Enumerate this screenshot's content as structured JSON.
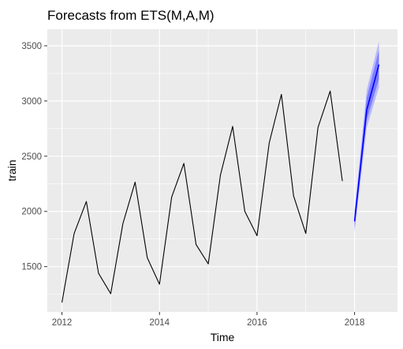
{
  "chart_data": {
    "type": "line",
    "title": "Forecasts from ETS(M,A,M)",
    "xlabel": "Time",
    "ylabel": "train",
    "xlim": [
      2011.7,
      2018.88
    ],
    "ylim": [
      1090,
      3650
    ],
    "x_ticks": [
      2012,
      2014,
      2016,
      2018
    ],
    "y_ticks": [
      1500,
      2000,
      2500,
      3000,
      3500
    ],
    "x_tick_labels": [
      "2012",
      "2014",
      "2016",
      "2018"
    ],
    "y_tick_labels": [
      "1500",
      "2000",
      "2500",
      "3000",
      "3500"
    ],
    "grid": true,
    "series": [
      {
        "role": "observed",
        "x": [
          2012.0,
          2012.25,
          2012.5,
          2012.75,
          2013.0,
          2013.25,
          2013.5,
          2013.75,
          2014.0,
          2014.25,
          2014.5,
          2014.75,
          2015.0,
          2015.25,
          2015.5,
          2015.75,
          2016.0,
          2016.25,
          2016.5,
          2016.75,
          2017.0,
          2017.25,
          2017.5,
          2017.75
        ],
        "values": [
          1175,
          1800,
          2090,
          1440,
          1255,
          1890,
          2265,
          1580,
          1340,
          2130,
          2435,
          1700,
          1525,
          2330,
          2770,
          2000,
          1780,
          2620,
          3060,
          2140,
          1800,
          2760,
          3090,
          2275
        ]
      },
      {
        "role": "forecast",
        "x": [
          2018.0,
          2018.25,
          2018.5
        ],
        "values": [
          1910,
          2920,
          3330
        ]
      }
    ],
    "intervals": [
      {
        "level": 95,
        "x": [
          2018.0,
          2018.25,
          2018.5
        ],
        "lower": [
          1810,
          2760,
          3125
        ],
        "upper": [
          2010,
          3100,
          3540
        ]
      },
      {
        "level": 80,
        "x": [
          2018.0,
          2018.25,
          2018.5
        ],
        "lower": [
          1850,
          2830,
          3200
        ],
        "upper": [
          1975,
          3030,
          3460
        ]
      }
    ],
    "colors": {
      "panel_background": "#ebebeb",
      "grid": "#ffffff",
      "observed": "#000000",
      "forecast": "#0000ff",
      "interval_95": "#b8b8ff",
      "interval_80": "#7c7cff",
      "tick_label": "#4d4d4d",
      "tick_mark": "#333333"
    }
  }
}
